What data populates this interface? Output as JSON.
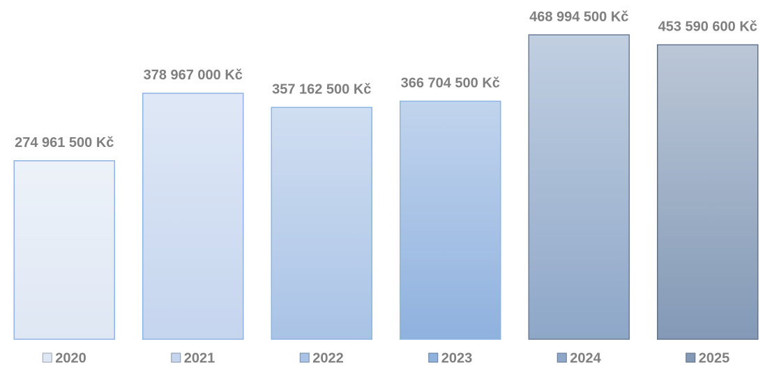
{
  "chart_data": {
    "type": "bar",
    "categories": [
      "2020",
      "2021",
      "2022",
      "2023",
      "2024",
      "2025"
    ],
    "values": [
      274961500,
      378967000,
      357162500,
      366704500,
      468994500,
      453590600
    ],
    "value_labels": [
      "274 961 500 Kč",
      "378 967 000 Kč",
      "357 162 500 Kč",
      "366 704 500 Kč",
      "468 994 500 Kč",
      "453 590 600 Kč"
    ],
    "colors": [
      "#dfe7f4",
      "#c5d5ee",
      "#a9c3e6",
      "#8fb1de",
      "#8ea7c8",
      "#8399b6"
    ],
    "legend": "bottom"
  }
}
